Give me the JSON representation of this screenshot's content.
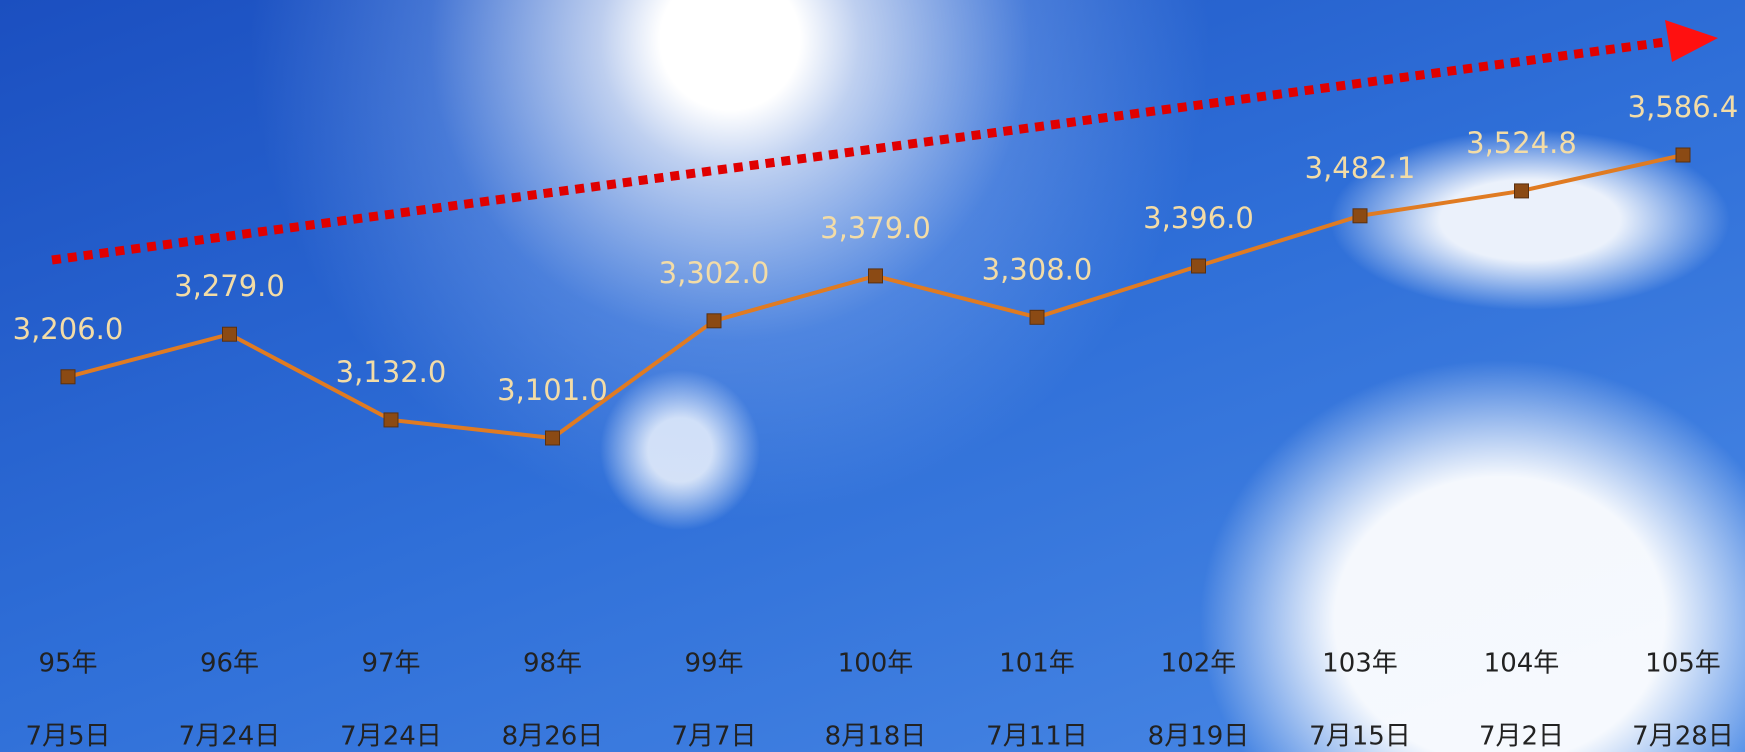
{
  "chart_data": {
    "type": "line",
    "categories": [
      [
        "95年",
        "7月5日"
      ],
      [
        "96年",
        "7月24日"
      ],
      [
        "97年",
        "7月24日"
      ],
      [
        "98年",
        "8月26日"
      ],
      [
        "99年",
        "7月7日"
      ],
      [
        "100年",
        "8月18日"
      ],
      [
        "101年",
        "7月11日"
      ],
      [
        "102年",
        "8月19日"
      ],
      [
        "103年",
        "7月15日"
      ],
      [
        "104年",
        "7月2日"
      ],
      [
        "105年",
        "7月28日"
      ]
    ],
    "series": [
      {
        "color": "#e07b22",
        "marker_color": "#8b4a14",
        "values": [
          3206.0,
          3279.0,
          3132.0,
          3101.0,
          3302.0,
          3379.0,
          3308.0,
          3396.0,
          3482.1,
          3524.8,
          3586.4
        ],
        "value_labels": [
          "3,206.0",
          "3,279.0",
          "3,132.0",
          "3,101.0",
          "3,302.0",
          "3,379.0",
          "3,308.0",
          "3,396.0",
          "3,482.1",
          "3,524.8",
          "3,586.4"
        ]
      }
    ]
  }
}
